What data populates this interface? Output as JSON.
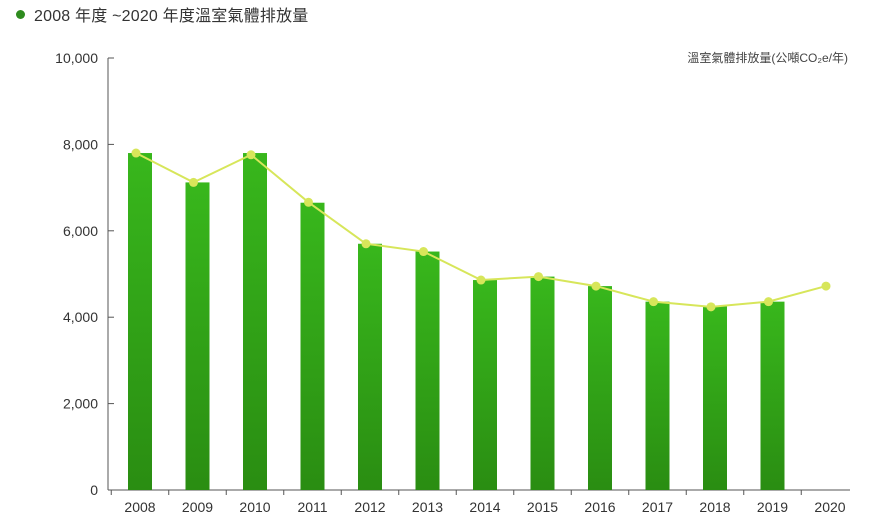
{
  "title": "2008 年度 ~2020 年度溫室氣體排放量",
  "colors": {
    "bar_top": "#38b71c",
    "bar_bottom": "#2a8d12",
    "line": "#d7e65a",
    "axis": "#555555",
    "title_dot": "#2e8b1e"
  },
  "chart_data": {
    "type": "bar",
    "unit_label": "溫室氣體排放量(公噸CO₂e/年)",
    "categories": [
      "2008",
      "2009",
      "2010",
      "2011",
      "2012",
      "2013",
      "2014",
      "2015",
      "2016",
      "2017",
      "2018",
      "2019",
      "2020"
    ],
    "y_ticks": [
      "0",
      "2,000",
      "4,000",
      "6,000",
      "8,000",
      "10,000"
    ],
    "ylim": [
      0,
      10000
    ],
    "series": [
      {
        "type": "bar",
        "values": [
          7800,
          7120,
          7800,
          6650,
          5700,
          5520,
          4860,
          4940,
          4720,
          4360,
          4250,
          4360,
          null
        ]
      },
      {
        "type": "line",
        "values": [
          7800,
          7120,
          7760,
          6660,
          5700,
          5520,
          4860,
          4940,
          4720,
          4360,
          4240,
          4360,
          4720
        ]
      }
    ],
    "grid": false
  }
}
